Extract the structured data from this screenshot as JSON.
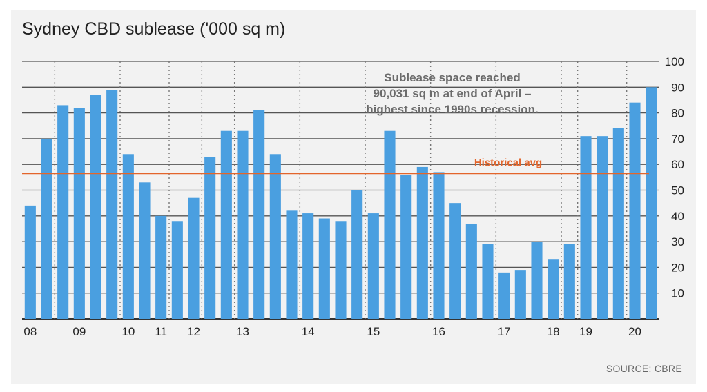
{
  "chart_data": {
    "type": "bar",
    "title": "Sydney CBD sublease ('000 sq m)",
    "values": [
      44,
      70,
      83,
      82,
      87,
      89,
      64,
      53,
      40,
      38,
      47,
      63,
      73,
      73,
      81,
      64,
      42,
      41,
      39,
      38,
      50,
      41,
      73,
      56,
      59,
      57,
      45,
      37,
      29,
      18,
      19,
      30,
      23,
      29,
      71,
      71,
      74,
      84,
      90
    ],
    "x_tick_labels": [
      {
        "label": "08",
        "position": 0.5
      },
      {
        "label": "09",
        "position": 3.5
      },
      {
        "label": "10",
        "position": 6.5
      },
      {
        "label": "11",
        "position": 8.5
      },
      {
        "label": "12",
        "position": 10.5
      },
      {
        "label": "13",
        "position": 13.5
      },
      {
        "label": "14",
        "position": 17.5
      },
      {
        "label": "15",
        "position": 21.5
      },
      {
        "label": "16",
        "position": 25.5
      },
      {
        "label": "17",
        "position": 29.5
      },
      {
        "label": "18",
        "position": 32.5
      },
      {
        "label": "19",
        "position": 34.5
      },
      {
        "label": "20",
        "position": 37.5
      }
    ],
    "year_separators_after_bar": [
      1,
      5,
      8,
      10,
      12,
      16,
      20,
      24,
      28,
      32,
      33,
      36
    ],
    "y_ticks": [
      10,
      20,
      30,
      40,
      50,
      60,
      70,
      80,
      90,
      100
    ],
    "ylim": [
      0,
      100
    ],
    "y_axis_side": "right",
    "grid": true,
    "reference_line": {
      "label": "Historical avg",
      "value": 56.5,
      "color": "#e3652b"
    },
    "annotation": [
      "Sublease space reached",
      "90,031 sq m at end of April –",
      "highest since 1990s recession."
    ],
    "bar_color": "#4a9fe0",
    "source": "SOURCE: CBRE"
  }
}
